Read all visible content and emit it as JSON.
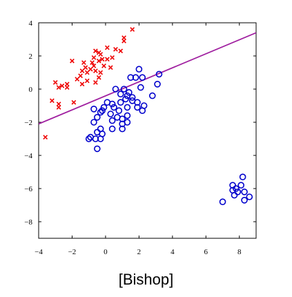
{
  "caption": "[Bishop]",
  "chart_data": {
    "type": "scatter",
    "title": "",
    "xlabel": "",
    "ylabel": "",
    "xlim": [
      -4,
      9
    ],
    "ylim": [
      -9,
      4
    ],
    "xticks": [
      -4,
      -2,
      0,
      2,
      4,
      6,
      8
    ],
    "yticks": [
      4,
      2,
      0,
      -2,
      -4,
      -6,
      -8
    ],
    "grid": false,
    "legend": "none",
    "colors": {
      "class1": "#ee0000",
      "class2": "#0000cc",
      "boundary": "#a020a0"
    },
    "series": [
      {
        "marker": "x",
        "color": "#ee0000",
        "points": [
          [
            1.6,
            3.6
          ],
          [
            1.1,
            3.1
          ],
          [
            1.1,
            2.9
          ],
          [
            0.1,
            2.5
          ],
          [
            0.6,
            2.4
          ],
          [
            0.9,
            2.3
          ],
          [
            -0.6,
            2.3
          ],
          [
            -0.4,
            2.2
          ],
          [
            -0.3,
            2.1
          ],
          [
            -0.7,
            1.9
          ],
          [
            0.4,
            1.9
          ],
          [
            0.1,
            1.8
          ],
          [
            -0.2,
            1.8
          ],
          [
            -0.4,
            1.7
          ],
          [
            -0.8,
            1.6
          ],
          [
            -2.0,
            1.7
          ],
          [
            -1.3,
            1.6
          ],
          [
            -0.7,
            1.4
          ],
          [
            -0.1,
            1.4
          ],
          [
            0.3,
            1.3
          ],
          [
            -1.2,
            1.3
          ],
          [
            -0.9,
            1.2
          ],
          [
            -1.4,
            1.1
          ],
          [
            -0.6,
            1.1
          ],
          [
            -1.1,
            1.0
          ],
          [
            -0.3,
            1.0
          ],
          [
            -1.5,
            0.8
          ],
          [
            -0.4,
            0.7
          ],
          [
            -1.7,
            0.6
          ],
          [
            -1.1,
            0.5
          ],
          [
            -0.6,
            0.4
          ],
          [
            -1.4,
            0.3
          ],
          [
            -3.0,
            0.4
          ],
          [
            -2.3,
            0.3
          ],
          [
            -2.6,
            0.2
          ],
          [
            -2.8,
            0.1
          ],
          [
            -2.3,
            0.1
          ],
          [
            -3.2,
            -0.7
          ],
          [
            -1.9,
            -0.8
          ],
          [
            -2.8,
            -0.9
          ],
          [
            -2.8,
            -1.1
          ],
          [
            -3.6,
            -2.9
          ]
        ]
      },
      {
        "marker": "o",
        "color": "#0000cc",
        "points": [
          [
            2.0,
            1.2
          ],
          [
            3.2,
            0.9
          ],
          [
            1.5,
            0.7
          ],
          [
            1.8,
            0.7
          ],
          [
            2.2,
            0.7
          ],
          [
            3.1,
            0.3
          ],
          [
            2.1,
            0.1
          ],
          [
            0.6,
            0.0
          ],
          [
            1.1,
            0.0
          ],
          [
            1.4,
            -0.2
          ],
          [
            0.9,
            -0.3
          ],
          [
            1.3,
            -0.4
          ],
          [
            2.8,
            -0.4
          ],
          [
            1.6,
            -0.5
          ],
          [
            1.2,
            -0.6
          ],
          [
            1.6,
            -0.7
          ],
          [
            0.1,
            -0.8
          ],
          [
            0.9,
            -0.8
          ],
          [
            1.9,
            -0.8
          ],
          [
            0.4,
            -0.9
          ],
          [
            2.3,
            -1.0
          ],
          [
            1.3,
            -1.1
          ],
          [
            1.9,
            -1.1
          ],
          [
            -0.1,
            -1.1
          ],
          [
            0.5,
            -1.1
          ],
          [
            -0.7,
            -1.2
          ],
          [
            -0.2,
            -1.3
          ],
          [
            0.8,
            -1.3
          ],
          [
            2.2,
            -1.3
          ],
          [
            -0.3,
            -1.4
          ],
          [
            0.3,
            -1.5
          ],
          [
            1.3,
            -1.6
          ],
          [
            -0.5,
            -1.7
          ],
          [
            0.7,
            -1.7
          ],
          [
            1.0,
            -1.8
          ],
          [
            0.4,
            -1.9
          ],
          [
            1.3,
            -2.0
          ],
          [
            -0.7,
            -2.0
          ],
          [
            1.0,
            -2.1
          ],
          [
            -0.3,
            -2.4
          ],
          [
            0.4,
            -2.4
          ],
          [
            1.0,
            -2.4
          ],
          [
            -0.5,
            -2.6
          ],
          [
            -0.2,
            -2.7
          ],
          [
            -0.9,
            -2.9
          ],
          [
            -0.3,
            -3.0
          ],
          [
            -0.6,
            -3.0
          ],
          [
            -1.0,
            -3.0
          ],
          [
            -0.5,
            -3.6
          ],
          [
            8.2,
            -5.3
          ],
          [
            7.6,
            -5.8
          ],
          [
            8.1,
            -5.8
          ],
          [
            7.8,
            -6.0
          ],
          [
            7.6,
            -6.1
          ],
          [
            7.9,
            -6.2
          ],
          [
            8.3,
            -6.2
          ],
          [
            7.7,
            -6.4
          ],
          [
            8.6,
            -6.5
          ],
          [
            8.3,
            -6.7
          ],
          [
            7.0,
            -6.8
          ]
        ]
      }
    ],
    "lines": [
      {
        "color": "#a020a0",
        "from": [
          -4,
          -2.1
        ],
        "to": [
          9,
          3.4
        ]
      }
    ]
  }
}
